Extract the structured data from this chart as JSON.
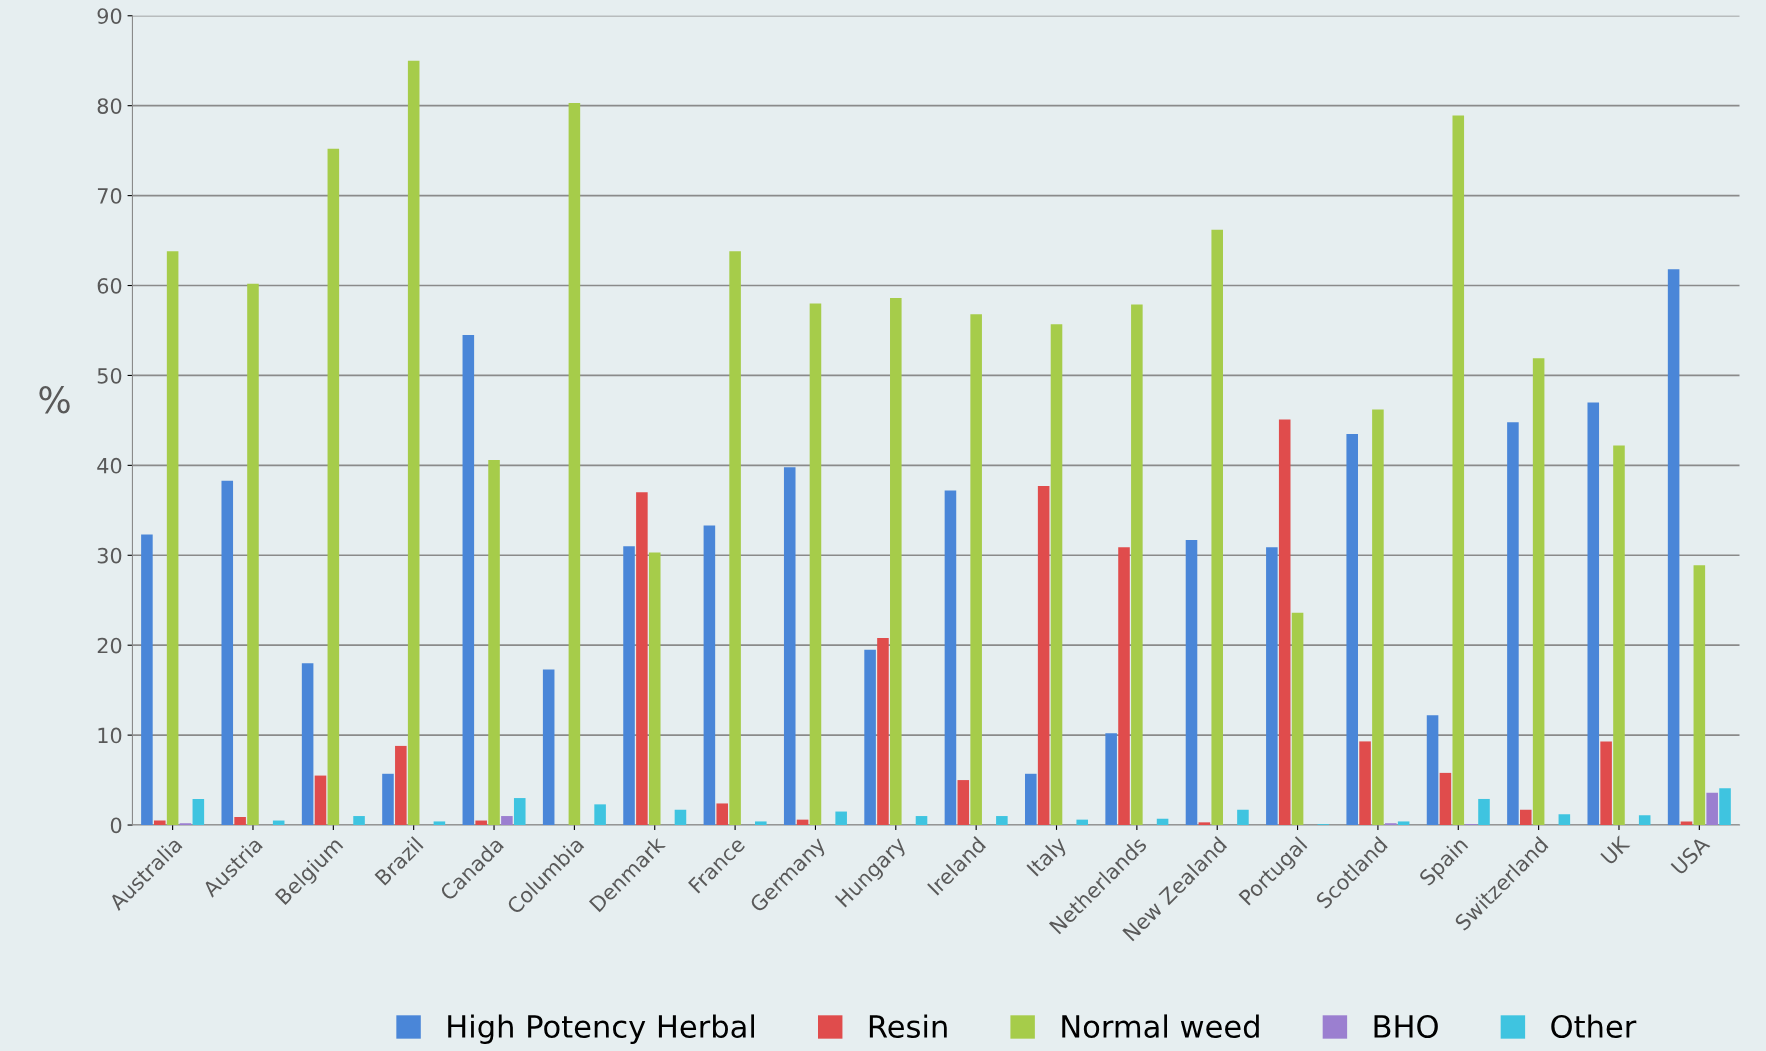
{
  "chart_data": {
    "type": "bar",
    "ylabel": "%",
    "categories": [
      "Australia",
      "Austria",
      "Belgium",
      "Brazil",
      "Canada",
      "Columbia",
      "Denmark",
      "France",
      "Germany",
      "Hungary",
      "Ireland",
      "Italy",
      "Netherlands",
      "New Zealand",
      "Portugal",
      "Scotland",
      "Spain",
      "Switzerland",
      "UK",
      "USA"
    ],
    "series": [
      {
        "name": "High Potency Herbal",
        "color": "#4a86d8",
        "values": [
          32.3,
          38.3,
          18.0,
          5.7,
          54.5,
          17.3,
          31.0,
          33.3,
          39.8,
          19.5,
          37.2,
          5.7,
          10.2,
          31.7,
          30.9,
          43.5,
          12.2,
          44.8,
          47.0,
          61.8
        ]
      },
      {
        "name": "Resin",
        "color": "#e04c4c",
        "values": [
          0.5,
          0.9,
          5.5,
          8.8,
          0.5,
          null,
          37.0,
          2.4,
          0.6,
          20.8,
          5.0,
          37.7,
          30.9,
          0.3,
          45.1,
          9.3,
          5.8,
          1.7,
          9.3,
          0.4
        ]
      },
      {
        "name": "Normal weed",
        "color": "#a6cc4a",
        "values": [
          63.8,
          60.2,
          75.2,
          85.0,
          40.6,
          80.3,
          30.3,
          63.8,
          58.0,
          58.6,
          56.8,
          55.7,
          57.9,
          66.2,
          23.6,
          46.2,
          78.9,
          51.9,
          42.2,
          28.9
        ]
      },
      {
        "name": "BHO",
        "color": "#9b7fd0",
        "values": [
          0.2,
          null,
          null,
          null,
          1.0,
          null,
          null,
          null,
          null,
          null,
          null,
          null,
          null,
          null,
          null,
          0.2,
          0.1,
          null,
          null,
          3.6
        ]
      },
      {
        "name": "Other",
        "color": "#3fc4e0",
        "values": [
          2.9,
          0.5,
          1.0,
          0.4,
          3.0,
          2.3,
          1.7,
          0.4,
          1.5,
          1.0,
          1.0,
          0.6,
          0.7,
          1.7,
          0.1,
          0.4,
          2.9,
          1.2,
          1.1,
          4.1
        ]
      }
    ],
    "ylim": [
      0,
      90
    ],
    "yticks": [
      0,
      10,
      20,
      30,
      40,
      50,
      60,
      70,
      80,
      90
    ],
    "grid": "y",
    "legend": "bottom"
  }
}
